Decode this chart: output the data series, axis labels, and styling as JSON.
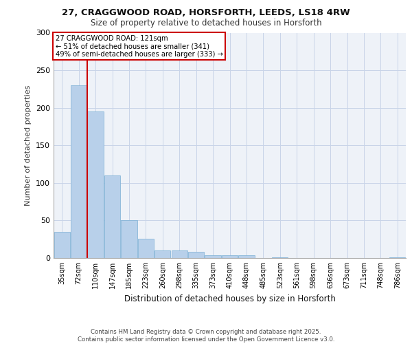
{
  "title1": "27, CRAGGWOOD ROAD, HORSFORTH, LEEDS, LS18 4RW",
  "title2": "Size of property relative to detached houses in Horsforth",
  "xlabel": "Distribution of detached houses by size in Horsforth",
  "ylabel": "Number of detached properties",
  "categories": [
    "35sqm",
    "72sqm",
    "110sqm",
    "147sqm",
    "185sqm",
    "223sqm",
    "260sqm",
    "298sqm",
    "335sqm",
    "373sqm",
    "410sqm",
    "448sqm",
    "485sqm",
    "523sqm",
    "561sqm",
    "598sqm",
    "636sqm",
    "673sqm",
    "711sqm",
    "748sqm",
    "786sqm"
  ],
  "values": [
    35,
    230,
    195,
    110,
    50,
    26,
    10,
    10,
    8,
    4,
    4,
    4,
    0,
    1,
    0,
    0,
    0,
    0,
    0,
    0,
    1
  ],
  "bar_color": "#b8d0ea",
  "bar_edge_color": "#7aafd4",
  "property_line_x": 1.5,
  "annotation_text": "27 CRAGGWOOD ROAD: 121sqm\n← 51% of detached houses are smaller (341)\n49% of semi-detached houses are larger (333) →",
  "annotation_box_color": "#ffffff",
  "annotation_box_edge_color": "#cc0000",
  "vline_color": "#cc0000",
  "grid_color": "#c8d4e8",
  "background_color": "#eef2f8",
  "footer_text": "Contains HM Land Registry data © Crown copyright and database right 2025.\nContains public sector information licensed under the Open Government Licence v3.0.",
  "ylim": [
    0,
    300
  ],
  "yticks": [
    0,
    50,
    100,
    150,
    200,
    250,
    300
  ]
}
